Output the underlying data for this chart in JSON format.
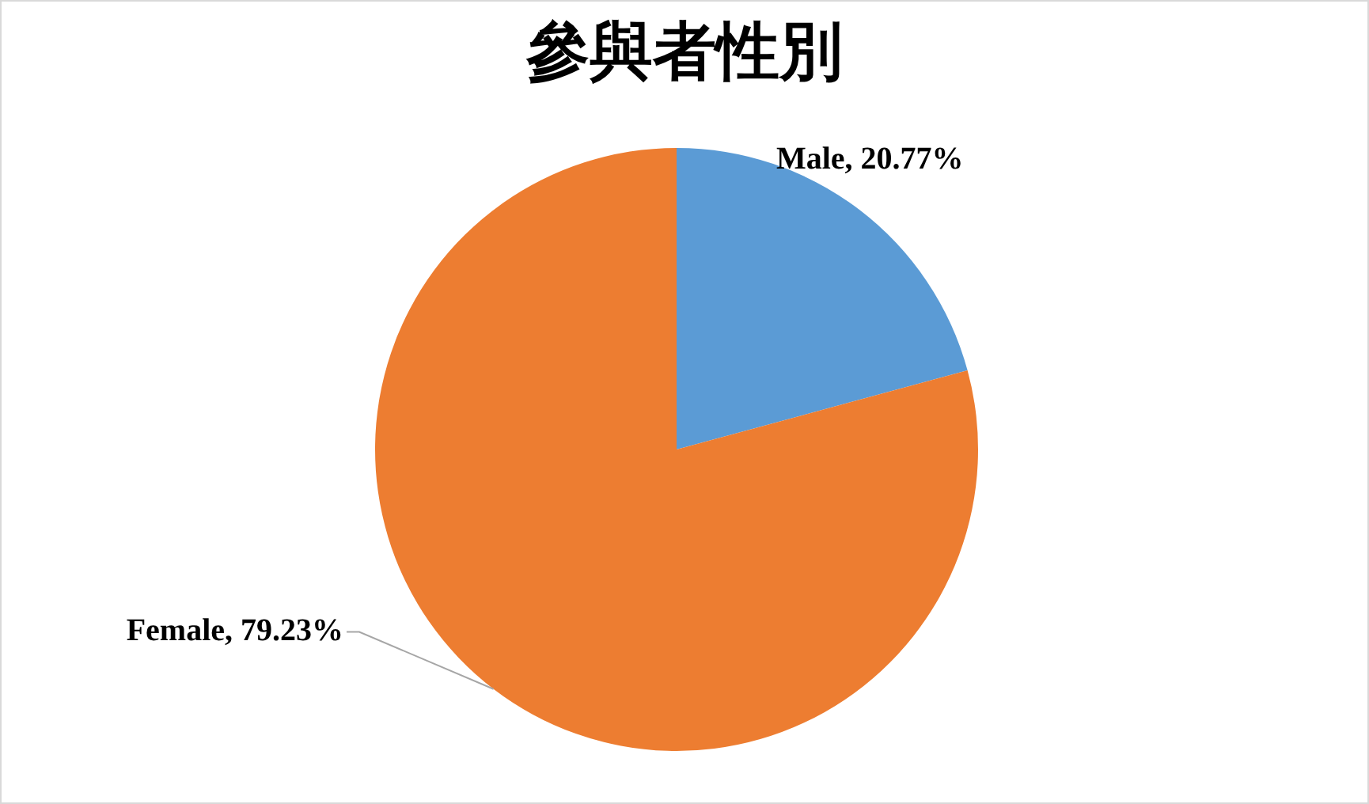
{
  "chart_data": {
    "type": "pie",
    "title": "參與者性別",
    "categories": [
      "Male",
      "Female"
    ],
    "values": [
      20.77,
      79.23
    ],
    "value_labels": [
      "20.77%",
      "79.23%"
    ],
    "colors": [
      "#5b9bd5",
      "#ed7d31"
    ],
    "legend": false
  }
}
